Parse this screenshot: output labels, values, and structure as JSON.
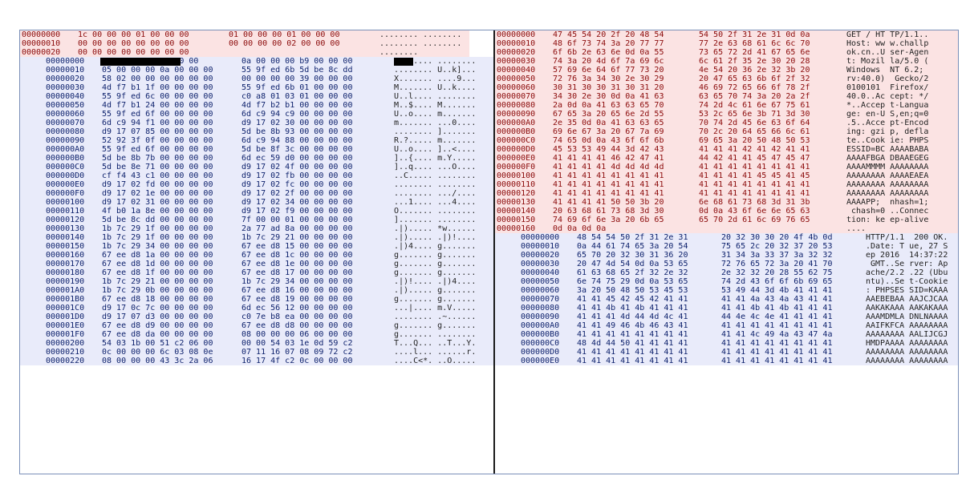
{
  "left_pane": {
    "request_header_lines": [
      {
        "offset": "00000000",
        "hex1": "1c 00 00 00 01 00 00 00",
        "hex2": "01 00 00 00 01 00 00 00",
        "ascii": "........ ........"
      },
      {
        "offset": "00000010",
        "hex1": "00 00 00 00 00 00 00 00",
        "hex2": "00 00 00 00 02 00 00 00",
        "ascii": "........ ........"
      },
      {
        "offset": "00000020",
        "hex1": "00 00 00 00 00 00 00 00",
        "hex2": "",
        "ascii": "........"
      }
    ],
    "response_lines": [
      {
        "offset": "00000000",
        "hex1": "            00 00 00",
        "hex2": "0a 00 00 00 b9 00 00 00",
        "ascii": "    .... ........",
        "redacted": true
      },
      {
        "offset": "00000010",
        "hex1": "05 00 00 00 0a 00 00 00",
        "hex2": "55 9f ed 6b 5d be 8c dd",
        "ascii": "........ U..k]..."
      },
      {
        "offset": "00000020",
        "hex1": "58 02 00 00 00 00 00 00",
        "hex2": "00 00 00 00 39 00 00 00",
        "ascii": "X....... ....9..."
      },
      {
        "offset": "00000030",
        "hex1": "4d f7 b1 1f 00 00 00 00",
        "hex2": "55 9f ed 6b 01 00 00 00",
        "ascii": "M....... U..k...."
      },
      {
        "offset": "00000040",
        "hex1": "55 9f ed 6c 00 00 00 00",
        "hex2": "c0 a8 01 03 01 00 00 00",
        "ascii": "U..l.... ........"
      },
      {
        "offset": "00000050",
        "hex1": "4d f7 b1 24 00 00 00 00",
        "hex2": "4d f7 b2 b1 00 00 00 00",
        "ascii": "M..$.... M......."
      },
      {
        "offset": "00000060",
        "hex1": "55 9f ed 6f 00 00 00 00",
        "hex2": "6d c9 94 c9 00 00 00 00",
        "ascii": "U..o.... m......."
      },
      {
        "offset": "00000070",
        "hex1": "6d c9 94 f1 00 00 00 00",
        "hex2": "d9 17 02 30 00 00 00 00",
        "ascii": "m....... ...0...."
      },
      {
        "offset": "00000080",
        "hex1": "d9 17 07 85 00 00 00 00",
        "hex2": "5d be 8b 93 00 00 00 00",
        "ascii": "........ ]......."
      },
      {
        "offset": "00000090",
        "hex1": "52 92 3f 0f 00 00 00 00",
        "hex2": "6d c9 94 88 00 00 00 00",
        "ascii": "R.?..... m......."
      },
      {
        "offset": "000000A0",
        "hex1": "55 9f ed 6f 00 00 00 00",
        "hex2": "5d be 8f 3c 00 00 00 00",
        "ascii": "U..o.... ]..<...."
      },
      {
        "offset": "000000B0",
        "hex1": "5d be 8b 7b 00 00 00 00",
        "hex2": "6d ec 59 d0 00 00 00 00",
        "ascii": "]..{.... m.Y....."
      },
      {
        "offset": "000000C0",
        "hex1": "5d be 8e 71 00 00 00 00",
        "hex2": "d9 17 02 4f 00 00 00 00",
        "ascii": "]..q.... ...O...."
      },
      {
        "offset": "000000D0",
        "hex1": "cf f4 43 c1 00 00 00 00",
        "hex2": "d9 17 02 fb 00 00 00 00",
        "ascii": "..C..... ........"
      },
      {
        "offset": "000000E0",
        "hex1": "d9 17 02 fd 00 00 00 00",
        "hex2": "d9 17 02 fc 00 00 00 00",
        "ascii": "........ ........"
      },
      {
        "offset": "000000F0",
        "hex1": "d9 17 02 1e 00 00 00 00",
        "hex2": "d9 17 02 2f 00 00 00 00",
        "ascii": "........ .../...."
      },
      {
        "offset": "00000100",
        "hex1": "d9 17 02 31 00 00 00 00",
        "hex2": "d9 17 02 34 00 00 00 00",
        "ascii": "...1.... ...4...."
      },
      {
        "offset": "00000110",
        "hex1": "4f b0 1a 8e 00 00 00 00",
        "hex2": "d9 17 02 f9 00 00 00 00",
        "ascii": "O....... ........"
      },
      {
        "offset": "00000120",
        "hex1": "5d be 8c dd 00 00 00 00",
        "hex2": "7f 00 00 01 00 00 00 00",
        "ascii": "]....... ........"
      },
      {
        "offset": "00000130",
        "hex1": "1b 7c 29 1f 00 00 00 00",
        "hex2": "2a 77 ad 8a 00 00 00 00",
        "ascii": ".|)..... *w......"
      },
      {
        "offset": "00000140",
        "hex1": "1b 7c 29 1f 00 00 00 00",
        "hex2": "1b 7c 29 21 00 00 00 00",
        "ascii": ".|)..... .|)!...."
      },
      {
        "offset": "00000150",
        "hex1": "1b 7c 29 34 00 00 00 00",
        "hex2": "67 ee d8 15 00 00 00 00",
        "ascii": ".|)4.... g......."
      },
      {
        "offset": "00000160",
        "hex1": "67 ee d8 1a 00 00 00 00",
        "hex2": "67 ee d8 1c 00 00 00 00",
        "ascii": "g....... g......."
      },
      {
        "offset": "00000170",
        "hex1": "67 ee d8 1d 00 00 00 00",
        "hex2": "67 ee d8 1e 00 00 00 00",
        "ascii": "g....... g......."
      },
      {
        "offset": "00000180",
        "hex1": "67 ee d8 1f 00 00 00 00",
        "hex2": "67 ee d8 17 00 00 00 00",
        "ascii": "g....... g......."
      },
      {
        "offset": "00000190",
        "hex1": "1b 7c 29 21 00 00 00 00",
        "hex2": "1b 7c 29 34 00 00 00 00",
        "ascii": ".|)!.... .|)4...."
      },
      {
        "offset": "000001A0",
        "hex1": "1b 7c 29 0b 00 00 00 00",
        "hex2": "67 ee d8 16 00 00 00 00",
        "ascii": ".|)..... g......."
      },
      {
        "offset": "000001B0",
        "hex1": "67 ee d8 18 00 00 00 00",
        "hex2": "67 ee d8 19 00 00 00 00",
        "ascii": "g....... g......."
      },
      {
        "offset": "000001C0",
        "hex1": "d9 17 0c 7c 00 00 00 00",
        "hex2": "6d ec 56 12 00 00 00 00",
        "ascii": "...|.... m.V....."
      },
      {
        "offset": "000001D0",
        "hex1": "d9 17 07 d3 00 00 00 00",
        "hex2": "c0 7e b8 ea 00 00 00 00",
        "ascii": "........ .~......"
      },
      {
        "offset": "000001E0",
        "hex1": "67 ee d8 d9 00 00 00 00",
        "hex2": "67 ee d8 d8 00 00 00 00",
        "ascii": "g....... g......."
      },
      {
        "offset": "000001F0",
        "hex1": "67 ee d8 da 00 00 00 00",
        "hex2": "08 00 00 00 06 00 00 00",
        "ascii": "g....... ........"
      },
      {
        "offset": "00000200",
        "hex1": "54 03 1b 00 51 c2 06 00",
        "hex2": "00 00 54 03 1e 0d 59 c2",
        "ascii": "T...Q... ..T...Y."
      },
      {
        "offset": "00000210",
        "hex1": "0c 00 00 00 6c 03 08 0e",
        "hex2": "07 11 16 07 08 09 72 c2",
        "ascii": "....l... ......r."
      },
      {
        "offset": "00000220",
        "hex1": "08 00 00 00 43 3c 2a 06",
        "hex2": "16 17 4f c2 0c 00 00 00",
        "ascii": "....C<*. ..O....."
      }
    ]
  },
  "right_pane": {
    "request_lines": [
      {
        "offset": "00000000",
        "hex1": "47 45 54 20 2f 20 48 54",
        "hex2": "54 50 2f 31 2e 31 0d 0a",
        "ascii": "GET / HT TP/1.1.."
      },
      {
        "offset": "00000010",
        "hex1": "48 6f 73 74 3a 20 77 77",
        "hex2": "77 2e 63 68 61 6c 6c 70",
        "ascii": "Host: ww w.challp"
      },
      {
        "offset": "00000020",
        "hex1": "6f 6b 2e 63 6e 0d 0a 55",
        "hex2": "73 65 72 2d 41 67 65 6e",
        "ascii": "ok.cn..U ser-Agen"
      },
      {
        "offset": "00000030",
        "hex1": "74 3a 20 4d 6f 7a 69 6c",
        "hex2": "6c 61 2f 35 2e 30 20 28",
        "ascii": "t: Mozil la/5.0 ("
      },
      {
        "offset": "00000040",
        "hex1": "57 69 6e 64 6f 77 73 20",
        "hex2": "4e 54 20 36 2e 32 3b 20",
        "ascii": "Windows  NT 6.2; "
      },
      {
        "offset": "00000050",
        "hex1": "72 76 3a 34 30 2e 30 29",
        "hex2": "20 47 65 63 6b 6f 2f 32",
        "ascii": "rv:40.0)  Gecko/2"
      },
      {
        "offset": "00000060",
        "hex1": "30 31 30 30 31 30 31 20",
        "hex2": "46 69 72 65 66 6f 78 2f",
        "ascii": "0100101  Firefox/"
      },
      {
        "offset": "00000070",
        "hex1": "34 30 2e 30 0d 0a 41 63",
        "hex2": "63 65 70 74 3a 20 2a 2f",
        "ascii": "40.0..Ac cept: */"
      },
      {
        "offset": "00000080",
        "hex1": "2a 0d 0a 41 63 63 65 70",
        "hex2": "74 2d 4c 61 6e 67 75 61",
        "ascii": "*..Accep t-Langua"
      },
      {
        "offset": "00000090",
        "hex1": "67 65 3a 20 65 6e 2d 55",
        "hex2": "53 2c 65 6e 3b 71 3d 30",
        "ascii": "ge: en-U S,en;q=0"
      },
      {
        "offset": "000000A0",
        "hex1": "2e 35 0d 0a 41 63 63 65",
        "hex2": "70 74 2d 45 6e 63 6f 64",
        "ascii": ".5..Acce pt-Encod"
      },
      {
        "offset": "000000B0",
        "hex1": "69 6e 67 3a 20 67 7a 69",
        "hex2": "70 2c 20 64 65 66 6c 61",
        "ascii": "ing: gzi p, defla"
      },
      {
        "offset": "000000C0",
        "hex1": "74 65 0d 0a 43 6f 6f 6b",
        "hex2": "69 65 3a 20 50 48 50 53",
        "ascii": "te..Cook ie: PHPS"
      },
      {
        "offset": "000000D0",
        "hex1": "45 53 53 49 44 3d 42 43",
        "hex2": "41 41 41 42 41 42 41 41",
        "ascii": "ESSID=BC AAAABABA"
      },
      {
        "offset": "000000E0",
        "hex1": "41 41 41 41 46 42 47 41",
        "hex2": "44 42 41 41 45 47 45 47",
        "ascii": "AAAAFBGA DBAAEGEG"
      },
      {
        "offset": "000000F0",
        "hex1": "41 41 41 41 4d 4d 4d 4d",
        "hex2": "41 41 41 41 41 41 41 41",
        "ascii": "AAAAMMMM AAAAAAAA"
      },
      {
        "offset": "00000100",
        "hex1": "41 41 41 41 41 41 41 41",
        "hex2": "41 41 41 41 45 45 41 45",
        "ascii": "AAAAAAAA AAAAEAEA"
      },
      {
        "offset": "00000110",
        "hex1": "41 41 41 41 41 41 41 41",
        "hex2": "41 41 41 41 41 41 41 41",
        "ascii": "AAAAAAAA AAAAAAAA"
      },
      {
        "offset": "00000120",
        "hex1": "41 41 41 41 41 41 41 41",
        "hex2": "41 41 41 41 41 41 41 41",
        "ascii": "AAAAAAAA AAAAAAAA"
      },
      {
        "offset": "00000130",
        "hex1": "41 41 41 41 50 50 3b 20",
        "hex2": "6e 68 61 73 68 3d 31 3b",
        "ascii": "AAAAPP;  nhash=1;"
      },
      {
        "offset": "00000140",
        "hex1": "20 63 68 61 73 68 3d 30",
        "hex2": "0d 0a 43 6f 6e 6e 65 63",
        "ascii": " chash=0 ..Connec"
      },
      {
        "offset": "00000150",
        "hex1": "74 69 6f 6e 3a 20 6b 65",
        "hex2": "65 70 2d 61 6c 69 76 65",
        "ascii": "tion: ke ep-alive"
      },
      {
        "offset": "00000160",
        "hex1": "0d 0a 0d 0a",
        "hex2": "",
        "ascii": "...."
      }
    ],
    "response_lines": [
      {
        "offset": "00000000",
        "hex1": "48 54 54 50 2f 31 2e 31",
        "hex2": "20 32 30 30 20 4f 4b 0d",
        "ascii": "HTTP/1.1  200 OK."
      },
      {
        "offset": "00000010",
        "hex1": "0a 44 61 74 65 3a 20 54",
        "hex2": "75 65 2c 20 32 37 20 53",
        "ascii": ".Date: T ue, 27 S"
      },
      {
        "offset": "00000020",
        "hex1": "65 70 20 32 30 31 36 20",
        "hex2": "31 34 3a 33 37 3a 32 32",
        "ascii": "ep 2016  14:37:22"
      },
      {
        "offset": "00000030",
        "hex1": "20 47 4d 54 0d 0a 53 65",
        "hex2": "72 76 65 72 3a 20 41 70",
        "ascii": " GMT..Se rver: Ap"
      },
      {
        "offset": "00000040",
        "hex1": "61 63 68 65 2f 32 2e 32",
        "hex2": "2e 32 32 20 28 55 62 75",
        "ascii": "ache/2.2 .22 (Ubu"
      },
      {
        "offset": "00000050",
        "hex1": "6e 74 75 29 0d 0a 53 65",
        "hex2": "74 2d 43 6f 6f 6b 69 65",
        "ascii": "ntu)..Se t-Cookie"
      },
      {
        "offset": "00000060",
        "hex1": "3a 20 50 48 50 53 45 53",
        "hex2": "53 49 44 3d 4b 41 41 41",
        "ascii": ": PHPSES SID=KAAA"
      },
      {
        "offset": "00000070",
        "hex1": "41 41 45 42 45 42 41 41",
        "hex2": "41 41 4a 43 4a 43 41 41",
        "ascii": "AAEBEBAA AAJCJCAA"
      },
      {
        "offset": "00000080",
        "hex1": "41 41 4b 41 4b 41 41 41",
        "hex2": "41 41 4b 41 4b 41 41 41",
        "ascii": "AAKAKAAA AAKAKAAA"
      },
      {
        "offset": "00000090",
        "hex1": "41 41 41 4d 44 4d 4c 41",
        "hex2": "44 4e 4c 4e 41 41 41 41",
        "ascii": "AAAMDMLA DNLNAAAA"
      },
      {
        "offset": "000000A0",
        "hex1": "41 41 49 46 4b 46 43 41",
        "hex2": "41 41 41 41 41 41 41 41",
        "ascii": "AAIFKFCA AAAAAAAA"
      },
      {
        "offset": "000000B0",
        "hex1": "41 41 41 41 41 41 41 41",
        "hex2": "41 41 4c 49 4a 43 47 4a",
        "ascii": "AAAAAAAA AALIJCGJ"
      },
      {
        "offset": "000000C0",
        "hex1": "48 4d 44 50 41 41 41 41",
        "hex2": "41 41 41 41 41 41 41 41",
        "ascii": "HMDPAAAA AAAAAAAA"
      },
      {
        "offset": "000000D0",
        "hex1": "41 41 41 41 41 41 41 41",
        "hex2": "41 41 41 41 41 41 41 41",
        "ascii": "AAAAAAAA AAAAAAAA"
      },
      {
        "offset": "000000E0",
        "hex1": "41 41 41 41 41 41 41 41",
        "hex2": "41 41 41 41 41 41 41 41",
        "ascii": "AAAAAAAA AAAAAAAA"
      }
    ]
  },
  "colors": {
    "request_bg": "#fbe3e3",
    "response_bg": "#e9ebfa",
    "request_text": "#8b0a0a",
    "response_text": "#0b1f6b",
    "border": "#7a8fb8",
    "divider": "#1a1a1a",
    "redaction": "#000000"
  }
}
